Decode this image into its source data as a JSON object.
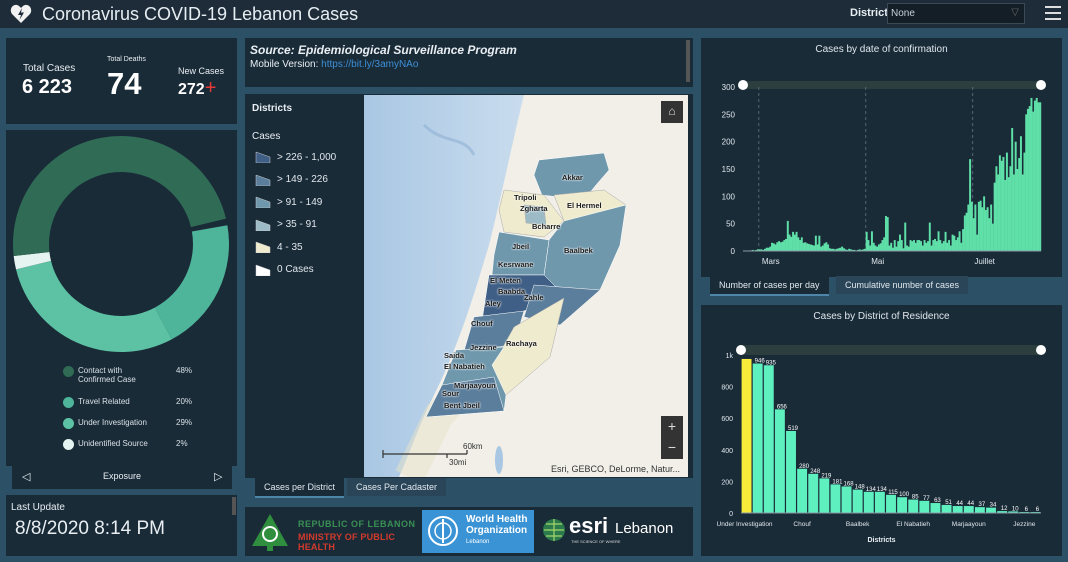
{
  "header": {
    "title": "Coronavirus COVID-19 Lebanon Cases",
    "logo_icon": "heart-bolt-icon",
    "district_label": "District",
    "district_value": "None",
    "menu_icon": "hamburger-menu-icon"
  },
  "stats": {
    "total_cases_label": "Total Cases",
    "total_cases": "6 223",
    "total_deaths_label": "Total Deaths",
    "total_deaths": "74",
    "new_cases_label": "New Cases",
    "new_cases": "272",
    "new_cases_symbol": "+",
    "new_cases_symbol_color": "#e53935"
  },
  "exposure": {
    "title": "Exposure",
    "items": [
      {
        "label": "Contact with Confirmed Case",
        "pct": "48%",
        "value": 48,
        "color": "#2f6b55"
      },
      {
        "label": "Travel Related",
        "pct": "20%",
        "value": 20,
        "color": "#4fb59a"
      },
      {
        "label": "Under Investigation",
        "pct": "29%",
        "value": 29,
        "color": "#5cc2a3"
      },
      {
        "label": "Unidentified Source",
        "pct": "2%",
        "value": 2,
        "color": "#e6f4f1"
      }
    ]
  },
  "last_update": {
    "label": "Last Update",
    "value": "8/8/2020 8:14 PM"
  },
  "source": {
    "title": "Source: Epidemiological Surveillance Program",
    "mobile_label": "Mobile Version:",
    "mobile_link": "https://bit.ly/3amyNAo"
  },
  "map": {
    "legend_title": "Districts",
    "legend_subtitle": "Cases",
    "legend": [
      {
        "label": "> 226 - 1,000",
        "color": "#3f5f86"
      },
      {
        "label": "> 149 - 226",
        "color": "#5b7e9c"
      },
      {
        "label": "> 91 - 149",
        "color": "#6f98ad"
      },
      {
        "label": "> 35 - 91",
        "color": "#9dbbc7"
      },
      {
        "label": "4 - 35",
        "color": "#efebcf"
      },
      {
        "label": "0 Cases",
        "color": "#ffffff"
      }
    ],
    "districts": [
      "Akkar",
      "Tripoli",
      "Zgharta",
      "El Hermel",
      "Bcharre",
      "Jbeil",
      "Baalbek",
      "Kesrwane",
      "El Meten",
      "Baabda",
      "Zahle",
      "Aley",
      "Chouf",
      "Jezzine",
      "Rachaya",
      "Saida",
      "El Nabatieh",
      "Marjaayoun",
      "Sour",
      "Bent Jbeil"
    ],
    "scale_km": "60km",
    "scale_mi": "30mi",
    "attribution": "Esri, GEBCO, DeLorme, Natur...",
    "home_icon": "home-icon",
    "zoom_in": "+",
    "zoom_out": "−",
    "tabs": [
      "Cases per District",
      "Cases Per Cadaster"
    ]
  },
  "logos": {
    "moph_line1": "REPUBLIC OF LEBANON",
    "moph_line2": "MINISTRY OF PUBLIC HEALTH",
    "who_line1": "World Health",
    "who_line2": "Organization",
    "who_line3": "Lebanon",
    "esri": "esri",
    "esri_country": "Lebanon",
    "esri_tag": "THE SCIENCE OF WHERE"
  },
  "chart_data": [
    {
      "type": "bar",
      "title": "Cases by  date of confirmation",
      "x_ticks": [
        "Mars",
        "Mai",
        "Juillet"
      ],
      "ylim": [
        0,
        300
      ],
      "y_ticks": [
        0,
        50,
        100,
        150,
        200,
        250,
        300
      ],
      "color": "#5fe0a8",
      "values": [
        1,
        0,
        0,
        1,
        1,
        2,
        1,
        2,
        3,
        3,
        3,
        2,
        4,
        6,
        6,
        8,
        15,
        14,
        12,
        16,
        18,
        16,
        17,
        20,
        22,
        55,
        30,
        26,
        35,
        30,
        35,
        25,
        20,
        25,
        15,
        16,
        14,
        13,
        12,
        11,
        10,
        28,
        12,
        28,
        8,
        10,
        14,
        16,
        12,
        5,
        4,
        4,
        3,
        4,
        5,
        6,
        8,
        5,
        3,
        2,
        4,
        3,
        2,
        2,
        1,
        2,
        3,
        2,
        3,
        4,
        35,
        20,
        10,
        36,
        15,
        10,
        8,
        12,
        14,
        20,
        25,
        64,
        62,
        10,
        15,
        6,
        20,
        8,
        18,
        30,
        20,
        5,
        52,
        10,
        8,
        20,
        18,
        20,
        15,
        20,
        20,
        18,
        10,
        20,
        15,
        18,
        52,
        10,
        20,
        22,
        18,
        36,
        20,
        14,
        18,
        35,
        15,
        20,
        10,
        30,
        28,
        20,
        25,
        36,
        15,
        40,
        65,
        70,
        85,
        168,
        90,
        60,
        85,
        30,
        90,
        92,
        80,
        100,
        75,
        80,
        60,
        85,
        50,
        125,
        155,
        140,
        175,
        165,
        172,
        130,
        180,
        135,
        155,
        225,
        140,
        200,
        150,
        170,
        210,
        140,
        180,
        250,
        260,
        265,
        280,
        255,
        275,
        280,
        272,
        272
      ],
      "tabs": [
        "Number of cases per day",
        "Cumulative number of cases"
      ]
    },
    {
      "type": "bar",
      "title": "Cases by District of Residence",
      "xlabel": "Districts",
      "ylim": [
        0,
        1000
      ],
      "y_ticks": [
        "0",
        "200",
        "400",
        "600",
        "800",
        "1k"
      ],
      "category_labels": [
        "Under Investigation",
        "",
        "",
        "",
        "",
        "Chouf",
        "",
        "",
        "",
        "",
        "Baalbek",
        "",
        "",
        "",
        "",
        "El Nabatieh",
        "",
        "",
        "",
        "",
        "Marjaayoun",
        "",
        "",
        "",
        "",
        "Jezzine",
        ""
      ],
      "values": [
        975,
        946,
        935,
        656,
        519,
        280,
        248,
        219,
        181,
        168,
        148,
        134,
        134,
        115,
        100,
        85,
        77,
        63,
        51,
        44,
        44,
        37,
        34,
        12,
        10,
        6,
        6
      ],
      "data_labels": [
        "",
        "946",
        "935",
        "656",
        "519",
        "280",
        "248",
        "219",
        "181",
        "168",
        "148",
        "134",
        "134",
        "115",
        "100",
        "85",
        "77",
        "63",
        "51",
        "44",
        "44",
        "37",
        "34",
        "12",
        "10",
        "6",
        "6"
      ],
      "highlight_color": "#f7ec3a",
      "color": "#5ff0c0"
    }
  ]
}
